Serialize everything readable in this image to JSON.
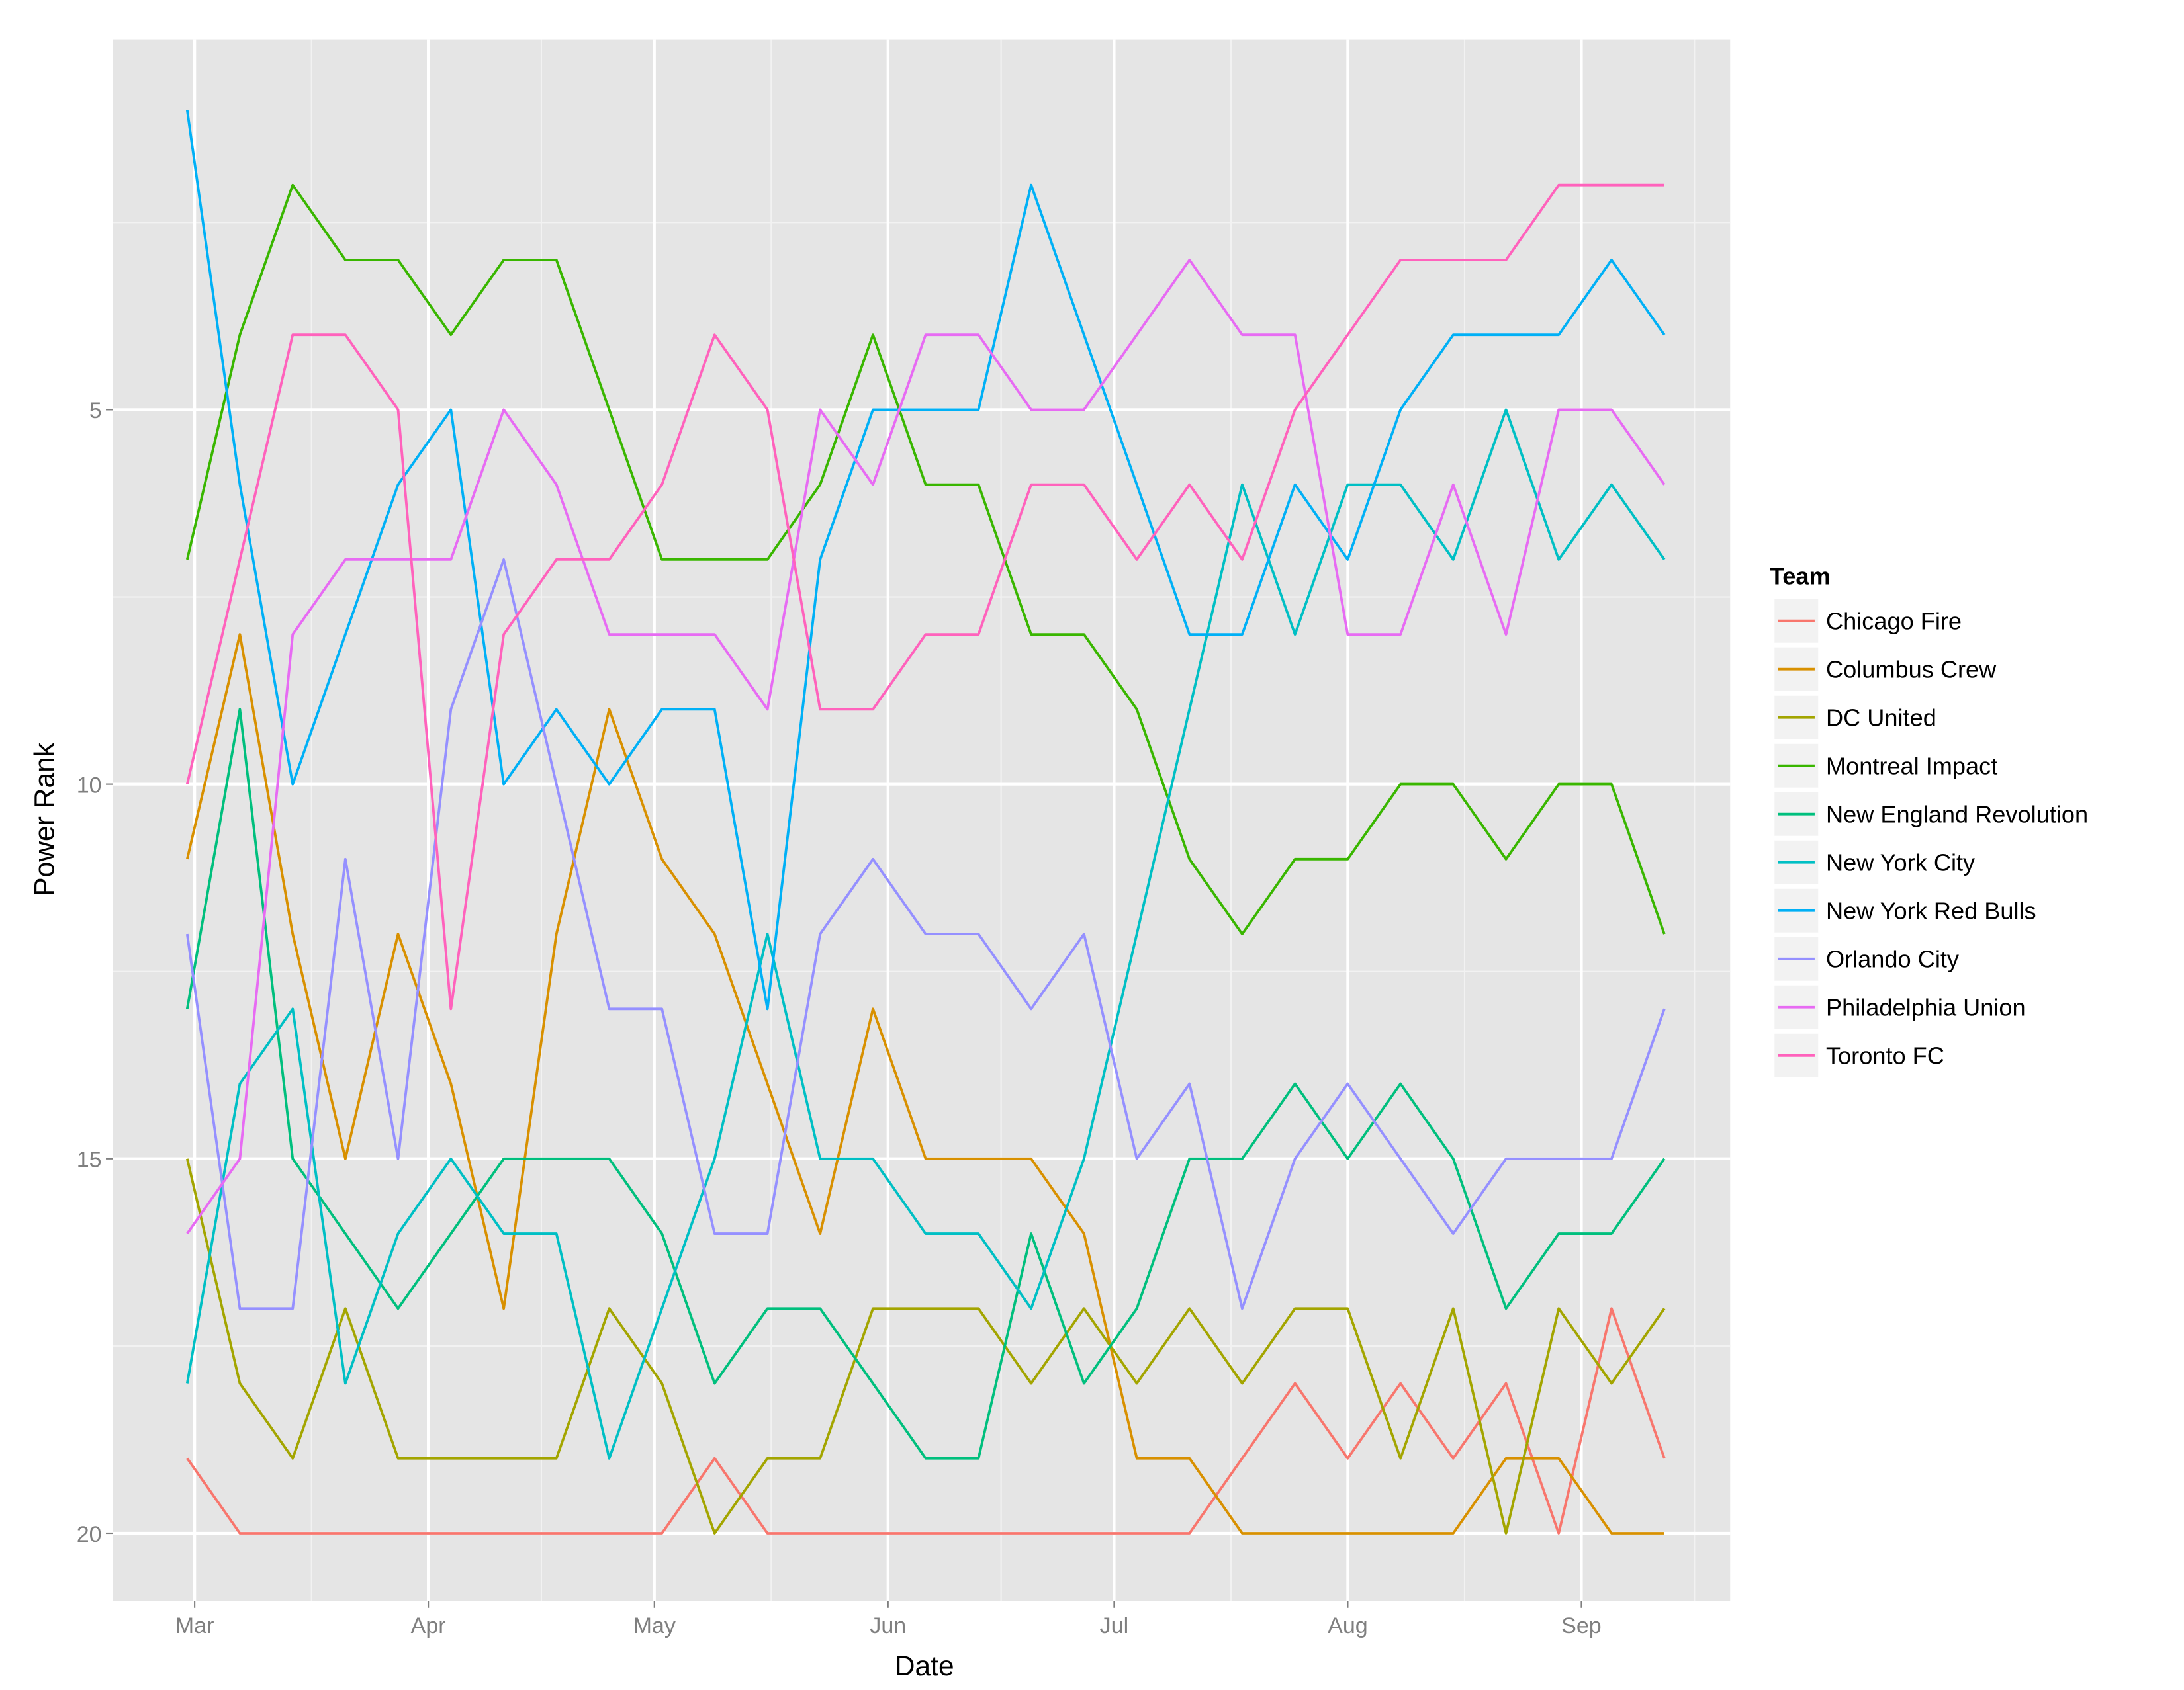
{
  "chart_data": {
    "type": "line",
    "xlabel": "Date",
    "ylabel": "Power Rank",
    "legend_title": "Team",
    "legend_placement": "right",
    "grid": true,
    "y_reversed": true,
    "ylim": [
      0.06,
      20.9
    ],
    "y_ticks": [
      5,
      10,
      15,
      20
    ],
    "x_ticks": [
      {
        "label": "Mar",
        "date": "2015-03-01"
      },
      {
        "label": "Apr",
        "date": "2015-04-01"
      },
      {
        "label": "May",
        "date": "2015-05-01"
      },
      {
        "label": "Jun",
        "date": "2015-06-01"
      },
      {
        "label": "Jul",
        "date": "2015-07-01"
      },
      {
        "label": "Aug",
        "date": "2015-08-01"
      },
      {
        "label": "Sep",
        "date": "2015-09-01"
      }
    ],
    "x": [
      "2015-02-28",
      "2015-03-07",
      "2015-03-14",
      "2015-03-21",
      "2015-03-28",
      "2015-04-04",
      "2015-04-11",
      "2015-04-18",
      "2015-04-25",
      "2015-05-02",
      "2015-05-09",
      "2015-05-16",
      "2015-05-23",
      "2015-05-30",
      "2015-06-06",
      "2015-06-13",
      "2015-06-20",
      "2015-06-27",
      "2015-07-04",
      "2015-07-11",
      "2015-07-18",
      "2015-07-25",
      "2015-08-01",
      "2015-08-08",
      "2015-08-15",
      "2015-08-22",
      "2015-08-29",
      "2015-09-05",
      "2015-09-12"
    ],
    "series": [
      {
        "name": "Chicago Fire",
        "color": "#F8766D",
        "values": [
          19,
          20,
          20,
          20,
          20,
          20,
          20,
          20,
          20,
          20,
          19,
          20,
          20,
          20,
          20,
          20,
          20,
          20,
          20,
          20,
          19,
          18,
          19,
          18,
          19,
          18,
          20,
          17,
          19
        ]
      },
      {
        "name": "Columbus Crew",
        "color": "#D89000",
        "values": [
          11,
          8,
          12,
          15,
          12,
          14,
          17,
          12,
          9,
          11,
          12,
          14,
          16,
          13,
          15,
          15,
          15,
          16,
          19,
          19,
          20,
          20,
          20,
          20,
          20,
          19,
          19,
          20,
          20
        ]
      },
      {
        "name": "DC United",
        "color": "#A3A500",
        "values": [
          15,
          18,
          19,
          17,
          19,
          19,
          19,
          19,
          17,
          18,
          20,
          19,
          19,
          17,
          17,
          17,
          18,
          17,
          18,
          17,
          18,
          17,
          17,
          19,
          17,
          20,
          17,
          18,
          17
        ]
      },
      {
        "name": "Montreal Impact",
        "color": "#39B600",
        "values": [
          7,
          4,
          2,
          3,
          3,
          4,
          3,
          3,
          5,
          7,
          7,
          7,
          6,
          4,
          6,
          6,
          8,
          8,
          9,
          11,
          12,
          11,
          11,
          10,
          10,
          11,
          10,
          10,
          12
        ]
      },
      {
        "name": "New England Revolution",
        "color": "#00BF7D",
        "values": [
          13,
          9,
          15,
          16,
          17,
          16,
          15,
          15,
          15,
          16,
          18,
          17,
          17,
          18,
          19,
          19,
          16,
          18,
          17,
          15,
          15,
          14,
          15,
          14,
          15,
          17,
          16,
          16,
          15
        ]
      },
      {
        "name": "New York City",
        "color": "#00BFC4",
        "values": [
          18,
          14,
          13,
          18,
          16,
          15,
          16,
          16,
          19,
          17,
          15,
          12,
          15,
          15,
          16,
          16,
          17,
          15,
          12,
          9,
          6,
          8,
          6,
          6,
          7,
          5,
          7,
          6,
          7
        ]
      },
      {
        "name": "New York Red Bulls",
        "color": "#00B0F6",
        "values": [
          1,
          6,
          10,
          8,
          6,
          5,
          10,
          9,
          10,
          9,
          9,
          13,
          7,
          5,
          5,
          5,
          2,
          4,
          6,
          8,
          8,
          6,
          7,
          5,
          4,
          4,
          4,
          3,
          4
        ]
      },
      {
        "name": "Orlando City",
        "color": "#9590FF",
        "values": [
          12,
          17,
          17,
          11,
          15,
          9,
          7,
          10,
          13,
          13,
          16,
          16,
          12,
          11,
          12,
          12,
          13,
          12,
          15,
          14,
          17,
          15,
          14,
          15,
          16,
          15,
          15,
          15,
          13
        ]
      },
      {
        "name": "Philadelphia Union",
        "color": "#E76BF3",
        "values": [
          16,
          15,
          8,
          7,
          7,
          7,
          5,
          6,
          8,
          8,
          8,
          9,
          5,
          6,
          4,
          4,
          5,
          5,
          4,
          3,
          4,
          4,
          8,
          8,
          6,
          8,
          5,
          5,
          6
        ]
      },
      {
        "name": "Toronto FC",
        "color": "#FF62BC",
        "values": [
          10,
          7,
          4,
          4,
          5,
          13,
          8,
          7,
          7,
          6,
          4,
          5,
          9,
          9,
          8,
          8,
          6,
          6,
          7,
          6,
          7,
          5,
          4,
          3,
          3,
          3,
          2,
          2,
          2
        ]
      }
    ]
  }
}
